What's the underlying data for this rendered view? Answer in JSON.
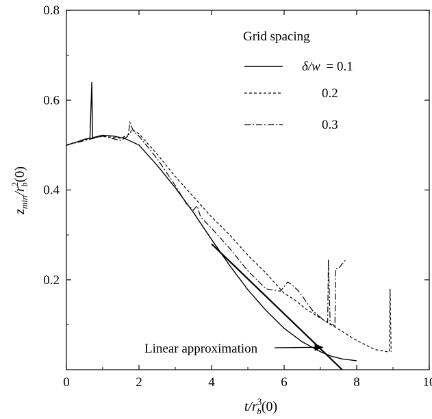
{
  "chart_data": {
    "type": "line",
    "xlim": [
      0,
      10
    ],
    "ylim": [
      0,
      0.8
    ],
    "x_ticks": [
      "0",
      "2",
      "4",
      "6",
      "8",
      "10"
    ],
    "y_ticks": [
      "0.2",
      "0.4",
      "0.6",
      "0.8"
    ],
    "xlabel": {
      "main": "t/r",
      "sub": "b",
      "sup": "3",
      "tail": "(0)"
    },
    "ylabel": {
      "z": "z",
      "zsub": "min",
      "mid": "/r",
      "sup": "2",
      "sub": "b",
      "tail": "(0)"
    },
    "legend_title": "Grid spacing",
    "legend_first_prefix": "δ/w",
    "legend_eq": "= 0.1",
    "series": [
      {
        "name": "0.1",
        "style": "solid",
        "x": [
          0,
          0.3,
          0.5,
          0.65,
          0.7,
          0.72,
          0.75,
          0.8,
          1.0,
          1.3,
          1.6,
          2.0,
          2.5,
          3.0,
          3.5,
          4.0,
          4.5,
          5.0,
          5.5,
          6.0,
          6.5,
          7.0,
          7.3,
          7.6,
          7.8,
          8.0
        ],
        "y": [
          0.5,
          0.507,
          0.513,
          0.515,
          0.64,
          0.515,
          0.517,
          0.518,
          0.522,
          0.52,
          0.515,
          0.5,
          0.455,
          0.405,
          0.35,
          0.29,
          0.232,
          0.178,
          0.132,
          0.092,
          0.062,
          0.04,
          0.03,
          0.024,
          0.022,
          0.02
        ]
      },
      {
        "name": "0.2",
        "style": "dashed",
        "x": [
          0,
          0.5,
          1.0,
          1.5,
          1.75,
          1.8,
          2.0,
          2.5,
          3.0,
          3.5,
          4.0,
          4.5,
          5.0,
          5.5,
          6.0,
          6.3,
          6.6,
          7.0,
          7.5,
          8.0,
          8.5,
          8.85,
          8.9,
          8.92,
          8.95
        ],
        "y": [
          0.5,
          0.512,
          0.52,
          0.515,
          0.525,
          0.535,
          0.525,
          0.48,
          0.43,
          0.385,
          0.34,
          0.3,
          0.255,
          0.215,
          0.17,
          0.155,
          0.135,
          0.115,
          0.09,
          0.065,
          0.045,
          0.04,
          0.04,
          0.18,
          0.04
        ]
      },
      {
        "name": "0.3",
        "style": "dashdot",
        "x": [
          0,
          0.5,
          1.0,
          1.5,
          1.7,
          1.75,
          1.85,
          2.0,
          2.5,
          3.0,
          3.3,
          3.5,
          3.6,
          3.7,
          4.0,
          4.5,
          5.0,
          5.5,
          5.9,
          6.1,
          6.2,
          6.4,
          6.8,
          7.1,
          7.2,
          7.22,
          7.27,
          7.35,
          7.4,
          7.42,
          7.5,
          7.7
        ],
        "y": [
          0.5,
          0.51,
          0.52,
          0.51,
          0.52,
          0.55,
          0.53,
          0.52,
          0.47,
          0.41,
          0.37,
          0.355,
          0.365,
          0.34,
          0.315,
          0.27,
          0.22,
          0.18,
          0.175,
          0.195,
          0.19,
          0.175,
          0.13,
          0.11,
          0.105,
          0.245,
          0.1,
          0.1,
          0.095,
          0.225,
          0.225,
          0.245
        ]
      }
    ],
    "linear_approximation": {
      "x": [
        4.0,
        7.6
      ],
      "y": [
        0.28,
        0.0
      ]
    },
    "annotation": {
      "text": "Linear approximation",
      "points_to": [
        7.1,
        0.05
      ]
    }
  }
}
